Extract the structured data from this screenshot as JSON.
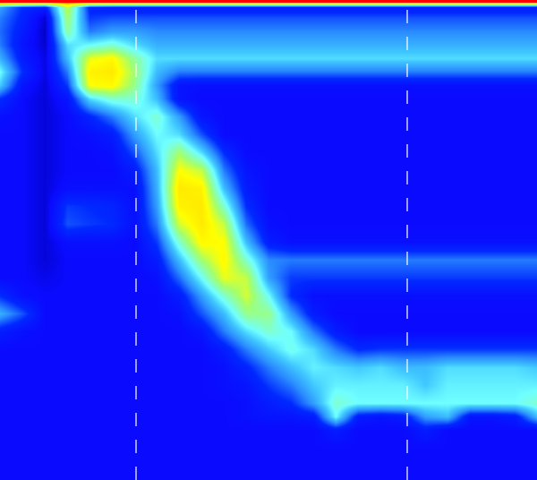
{
  "chart_data": {
    "type": "heatmap",
    "x": [
      0,
      25,
      50,
      75,
      100,
      125,
      150,
      175,
      200,
      225,
      250,
      275,
      300,
      325,
      350,
      375,
      400,
      425,
      450,
      475,
      500,
      525,
      550,
      575,
      600
    ],
    "y": [
      2,
      8,
      20,
      35,
      50,
      65,
      80,
      95,
      110,
      130,
      150,
      170,
      190,
      210,
      230,
      250,
      270,
      290,
      310,
      330,
      350,
      370,
      390,
      410,
      430,
      450,
      465,
      480,
      500,
      534
    ],
    "cells": [
      [
        100,
        100,
        100,
        100,
        100,
        100,
        100,
        100,
        100,
        100,
        100,
        100,
        100,
        100,
        100,
        100,
        100,
        100,
        100,
        100,
        100,
        100,
        100,
        100,
        100
      ],
      [
        35,
        20,
        15,
        70,
        18,
        15,
        15,
        15,
        15,
        15,
        15,
        15,
        15,
        15,
        15,
        15,
        15,
        15,
        15,
        15,
        15,
        15,
        15,
        15,
        15
      ],
      [
        30,
        18,
        3,
        65,
        22,
        25,
        25,
        25,
        25,
        25,
        25,
        25,
        25,
        25,
        25,
        25,
        25,
        25,
        25,
        25,
        25,
        25,
        25,
        25,
        25
      ],
      [
        28,
        15,
        2,
        60,
        30,
        35,
        35,
        32,
        32,
        32,
        32,
        32,
        32,
        32,
        32,
        32,
        32,
        32,
        32,
        32,
        32,
        32,
        32,
        32,
        32
      ],
      [
        30,
        12,
        3,
        45,
        50,
        55,
        45,
        38,
        38,
        38,
        38,
        38,
        38,
        38,
        38,
        38,
        38,
        38,
        38,
        38,
        38,
        38,
        38,
        38,
        38
      ],
      [
        38,
        15,
        5,
        40,
        75,
        80,
        60,
        45,
        45,
        45,
        45,
        45,
        45,
        45,
        45,
        45,
        45,
        45,
        45,
        45,
        45,
        45,
        45,
        45,
        45
      ],
      [
        50,
        20,
        5,
        30,
        82,
        85,
        65,
        40,
        30,
        30,
        30,
        30,
        30,
        30,
        30,
        30,
        30,
        30,
        30,
        30,
        30,
        30,
        30,
        30,
        30
      ],
      [
        42,
        12,
        4,
        22,
        78,
        80,
        62,
        35,
        12,
        10,
        10,
        10,
        10,
        10,
        10,
        10,
        10,
        10,
        10,
        10,
        10,
        10,
        10,
        10,
        10
      ],
      [
        20,
        8,
        4,
        12,
        45,
        55,
        55,
        40,
        12,
        8,
        8,
        8,
        8,
        8,
        8,
        8,
        8,
        8,
        8,
        8,
        8,
        8,
        8,
        8,
        8
      ],
      [
        10,
        8,
        4,
        8,
        18,
        30,
        45,
        55,
        35,
        12,
        8,
        8,
        8,
        8,
        8,
        8,
        8,
        8,
        8,
        8,
        8,
        8,
        8,
        8,
        8
      ],
      [
        8,
        8,
        4,
        8,
        10,
        15,
        35,
        50,
        45,
        25,
        8,
        8,
        8,
        8,
        8,
        8,
        8,
        8,
        8,
        8,
        8,
        8,
        8,
        8,
        8
      ],
      [
        8,
        8,
        4,
        8,
        8,
        10,
        25,
        45,
        65,
        45,
        20,
        8,
        8,
        8,
        8,
        8,
        8,
        8,
        8,
        8,
        8,
        8,
        8,
        8,
        8
      ],
      [
        8,
        8,
        4,
        8,
        8,
        8,
        15,
        40,
        78,
        70,
        30,
        12,
        8,
        8,
        8,
        8,
        8,
        8,
        8,
        8,
        8,
        8,
        8,
        8,
        8
      ],
      [
        8,
        8,
        4,
        10,
        10,
        10,
        10,
        38,
        85,
        82,
        40,
        15,
        8,
        8,
        8,
        8,
        8,
        8,
        8,
        8,
        8,
        8,
        8,
        8,
        8
      ],
      [
        8,
        8,
        4,
        22,
        20,
        18,
        10,
        35,
        82,
        85,
        55,
        20,
        8,
        8,
        8,
        8,
        8,
        8,
        8,
        8,
        8,
        8,
        8,
        8,
        8
      ],
      [
        8,
        8,
        4,
        25,
        22,
        20,
        10,
        30,
        72,
        85,
        70,
        28,
        10,
        8,
        8,
        8,
        8,
        8,
        8,
        8,
        8,
        8,
        8,
        8,
        8
      ],
      [
        8,
        8,
        4,
        10,
        10,
        10,
        8,
        22,
        55,
        80,
        78,
        40,
        15,
        10,
        10,
        10,
        10,
        10,
        10,
        10,
        10,
        10,
        10,
        10,
        10
      ],
      [
        8,
        8,
        4,
        8,
        8,
        8,
        8,
        15,
        40,
        65,
        80,
        55,
        32,
        30,
        30,
        30,
        30,
        30,
        30,
        30,
        30,
        30,
        30,
        30,
        30
      ],
      [
        8,
        8,
        6,
        8,
        8,
        8,
        8,
        10,
        28,
        50,
        75,
        70,
        35,
        22,
        22,
        22,
        22,
        22,
        22,
        22,
        22,
        22,
        22,
        22,
        22
      ],
      [
        20,
        10,
        8,
        8,
        8,
        8,
        8,
        8,
        15,
        35,
        55,
        72,
        50,
        20,
        10,
        10,
        10,
        10,
        10,
        10,
        10,
        10,
        10,
        10,
        10
      ],
      [
        38,
        25,
        8,
        8,
        8,
        8,
        8,
        8,
        10,
        25,
        40,
        62,
        62,
        35,
        15,
        8,
        8,
        8,
        8,
        8,
        8,
        8,
        8,
        8,
        8
      ],
      [
        15,
        10,
        8,
        8,
        8,
        8,
        8,
        8,
        8,
        12,
        30,
        45,
        55,
        50,
        30,
        15,
        8,
        8,
        8,
        8,
        8,
        8,
        8,
        8,
        8
      ],
      [
        8,
        8,
        8,
        8,
        8,
        8,
        8,
        8,
        8,
        8,
        15,
        30,
        42,
        52,
        45,
        30,
        20,
        22,
        22,
        22,
        22,
        22,
        22,
        22,
        22
      ],
      [
        8,
        8,
        8,
        8,
        8,
        8,
        8,
        8,
        8,
        8,
        10,
        18,
        30,
        40,
        48,
        45,
        42,
        45,
        40,
        40,
        45,
        45,
        45,
        45,
        42
      ],
      [
        8,
        8,
        8,
        8,
        8,
        8,
        8,
        8,
        8,
        8,
        10,
        12,
        22,
        30,
        42,
        48,
        48,
        48,
        48,
        42,
        48,
        48,
        48,
        48,
        48
      ],
      [
        8,
        8,
        8,
        8,
        8,
        8,
        8,
        8,
        8,
        8,
        8,
        10,
        15,
        20,
        35,
        55,
        50,
        50,
        50,
        50,
        50,
        50,
        50,
        50,
        55
      ],
      [
        8,
        8,
        8,
        8,
        8,
        8,
        8,
        8,
        8,
        8,
        8,
        10,
        12,
        12,
        15,
        50,
        15,
        12,
        15,
        35,
        40,
        12,
        12,
        15,
        40
      ],
      [
        8,
        8,
        8,
        8,
        8,
        8,
        8,
        8,
        8,
        8,
        8,
        8,
        8,
        8,
        8,
        15,
        8,
        8,
        8,
        15,
        8,
        8,
        8,
        8,
        8
      ],
      [
        8,
        8,
        8,
        8,
        8,
        8,
        8,
        8,
        8,
        8,
        8,
        8,
        8,
        8,
        8,
        8,
        8,
        8,
        8,
        8,
        8,
        8,
        8,
        8,
        8
      ],
      [
        8,
        8,
        8,
        8,
        8,
        8,
        8,
        8,
        8,
        8,
        8,
        8,
        8,
        8,
        8,
        8,
        8,
        8,
        8,
        8,
        8,
        8,
        8,
        8,
        8
      ]
    ],
    "zlim": [
      0,
      100
    ],
    "xlim": [
      0,
      600
    ],
    "ylim": [
      536,
      0
    ],
    "vlines": [
      152,
      455
    ],
    "tick_labels": false,
    "grid": false
  }
}
